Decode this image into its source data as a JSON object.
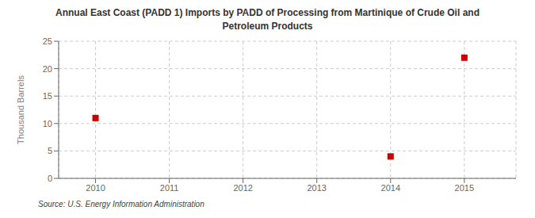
{
  "chart_data": {
    "type": "scatter",
    "title": "Annual East Coast (PADD 1) Imports by PADD of Processing from Martinique of Crude Oil and\nPetroleum Products",
    "ylabel": "Thousand Barrels",
    "annotations": [
      "Source: U.S. Energy Information Administration"
    ],
    "x": [
      2010,
      2014,
      2015
    ],
    "values": [
      11,
      4,
      22
    ],
    "color": "#cc0000",
    "marker": "square",
    "xlim": [
      2009.5,
      2015.7
    ],
    "ylim": [
      0,
      25
    ],
    "xticks": [
      2010,
      2011,
      2012,
      2013,
      2014,
      2015
    ],
    "yticks": [
      0,
      5,
      10,
      15,
      20,
      25
    ],
    "grid": true
  }
}
